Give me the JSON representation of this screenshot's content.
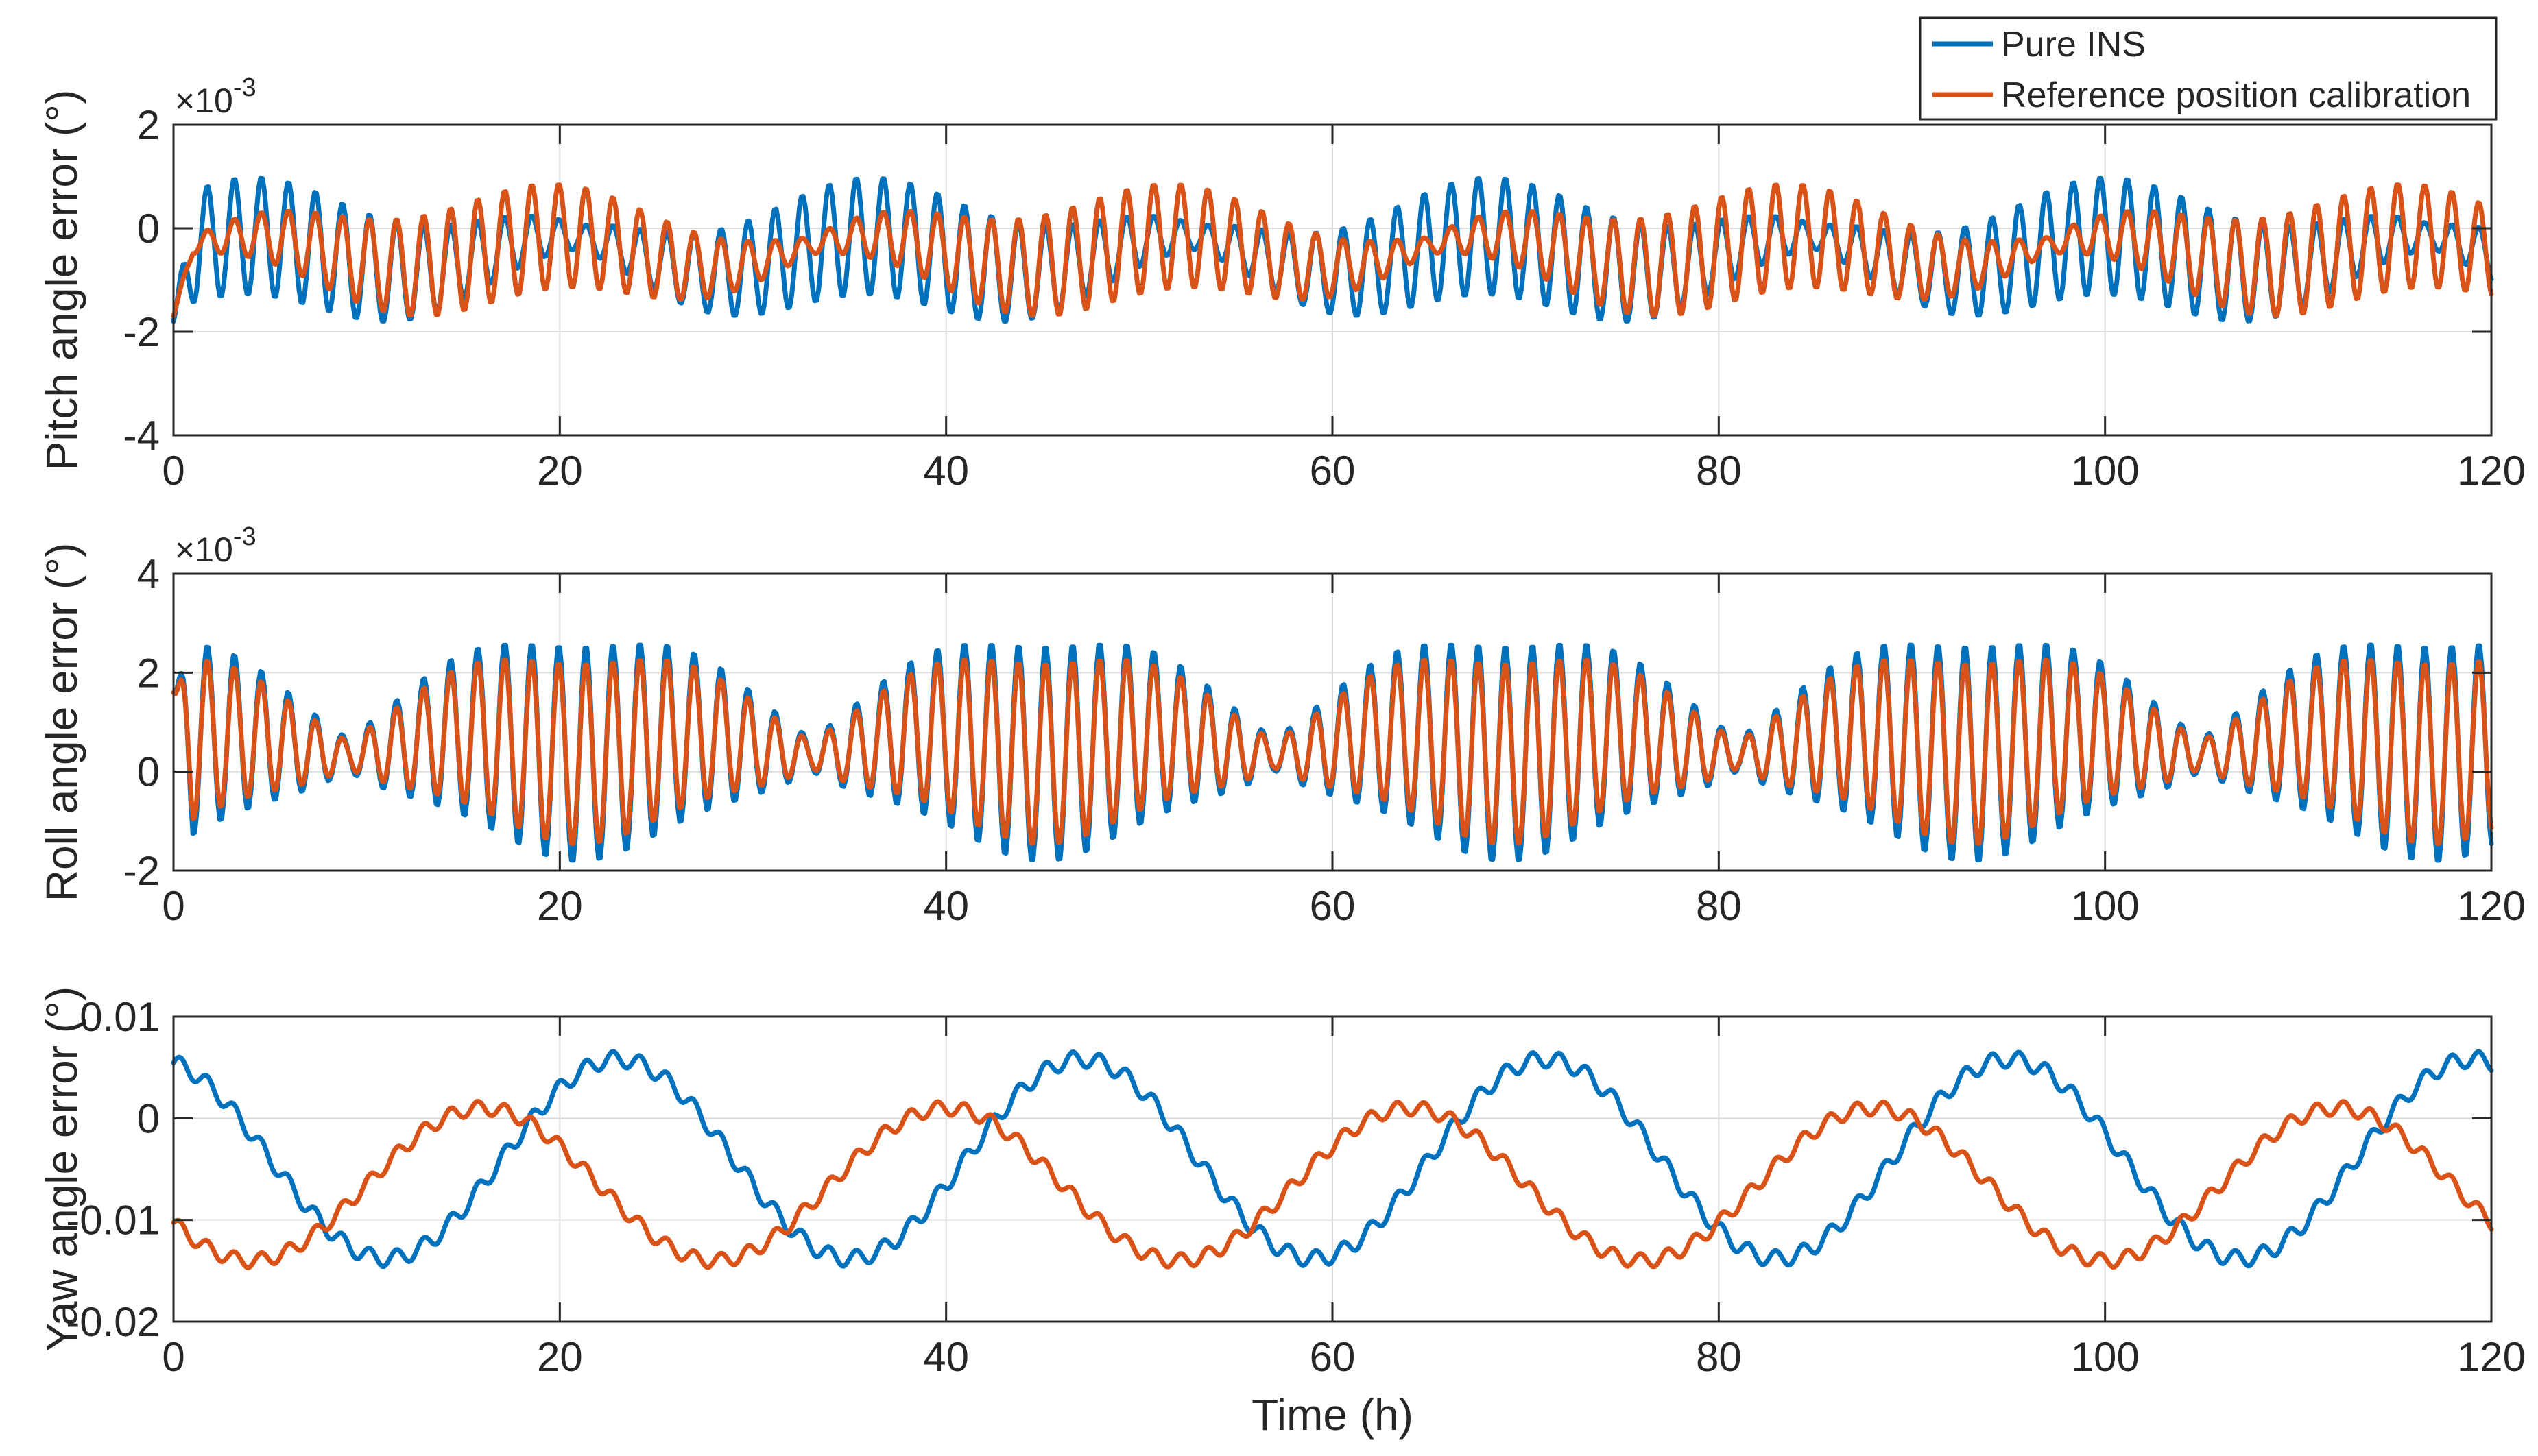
{
  "chart_data": [
    {
      "type": "line",
      "id": "pitch",
      "title": "",
      "xlabel": "",
      "ylabel": "Pitch angle error (°)",
      "y_multiplier_label": "×10",
      "y_multiplier_exp": "-3",
      "xlim": [
        0,
        120
      ],
      "ylim": [
        -4,
        2
      ],
      "xticks": [
        0,
        20,
        40,
        60,
        80,
        100,
        120
      ],
      "xtick_labels": [
        "0",
        "20",
        "40",
        "60",
        "80",
        "100",
        "120"
      ],
      "yticks": [
        -4,
        -2,
        0,
        2
      ],
      "ytick_labels": [
        "-4",
        "-2",
        "0",
        "2"
      ],
      "grid": true,
      "x": {
        "start": 0,
        "end": 120,
        "step": 0.1
      },
      "series": [
        {
          "name": "Pure INS",
          "color": "#0072BD",
          "model": {
            "offset": -0.5,
            "fast_amp": 1.15,
            "fast_period_h": 1.4,
            "env_period_h": 32,
            "env_phase_h": 37,
            "env_floor": 0.2,
            "slow_amp": 0.35,
            "slow_period_h": 16,
            "start_value": -1.8
          }
        },
        {
          "name": "Reference position calibration",
          "color": "#D95319",
          "model": {
            "offset": -0.45,
            "fast_amp": 1.05,
            "fast_period_h": 1.4,
            "env_period_h": 32,
            "env_phase_h": 17,
            "env_floor": 0.15,
            "slow_amp": 0.3,
            "slow_period_h": 16,
            "start_value": -1.7
          }
        }
      ]
    },
    {
      "type": "line",
      "id": "roll",
      "title": "",
      "xlabel": "",
      "ylabel": "Roll angle error (°)",
      "y_multiplier_label": "×10",
      "y_multiplier_exp": "-3",
      "xlim": [
        0,
        120
      ],
      "ylim": [
        -2,
        4
      ],
      "xticks": [
        0,
        20,
        40,
        60,
        80,
        100,
        120
      ],
      "xtick_labels": [
        "0",
        "20",
        "40",
        "60",
        "80",
        "100",
        "120"
      ],
      "yticks": [
        -2,
        0,
        2,
        4
      ],
      "ytick_labels": [
        "-2",
        "0",
        "2",
        "4"
      ],
      "grid": true,
      "x": {
        "start": 0,
        "end": 120,
        "step": 0.1
      },
      "series": [
        {
          "name": "Pure INS",
          "color": "#0072BD",
          "model": {
            "offset": 0.55,
            "fast_amp": 2.2,
            "fast_period_h": 1.4,
            "env_period_h": 24,
            "env_phase_h": 45,
            "env_floor": 0.15,
            "slow_amp": 0.2,
            "slow_period_h": 12,
            "start_value": 1.6
          }
        },
        {
          "name": "Reference position calibration",
          "color": "#D95319",
          "model": {
            "offset": 0.55,
            "fast_amp": 1.85,
            "fast_period_h": 1.4,
            "env_period_h": 24,
            "env_phase_h": 45,
            "env_floor": 0.15,
            "slow_amp": 0.2,
            "slow_period_h": 12,
            "start_value": 1.6
          }
        }
      ]
    },
    {
      "type": "line",
      "id": "yaw",
      "title": "",
      "xlabel": "Time (h)",
      "ylabel": "Yaw angle error (°)",
      "xlim": [
        0,
        120
      ],
      "ylim": [
        -0.02,
        0.01
      ],
      "xticks": [
        0,
        20,
        40,
        60,
        80,
        100,
        120
      ],
      "xtick_labels": [
        "0",
        "20",
        "40",
        "60",
        "80",
        "100",
        "120"
      ],
      "yticks": [
        -0.02,
        -0.01,
        0,
        0.01
      ],
      "ytick_labels": [
        "-0.02",
        "-0.01",
        "0",
        "0.01"
      ],
      "grid": true,
      "x": {
        "start": 0,
        "end": 120,
        "step": 0.1
      },
      "series": [
        {
          "name": "Pure INS",
          "color": "#0072BD",
          "model": {
            "offset": -0.004,
            "slow_amp": 0.0098,
            "slow_period_h": 24,
            "slow_peak_h": 23,
            "ripple_amp": 0.0008,
            "ripple_period_h": 1.4
          }
        },
        {
          "name": "Reference position calibration",
          "color": "#D95319",
          "model": {
            "offset": -0.0065,
            "slow_amp": 0.0075,
            "slow_period_h": 24,
            "slow_peak_h": 40,
            "ripple_amp": 0.0007,
            "ripple_period_h": 1.4
          }
        }
      ]
    }
  ],
  "legend": {
    "location": "top-right",
    "entries": [
      {
        "label": "Pure INS",
        "color": "#0072BD"
      },
      {
        "label": "Reference position calibration",
        "color": "#D95319"
      }
    ]
  }
}
